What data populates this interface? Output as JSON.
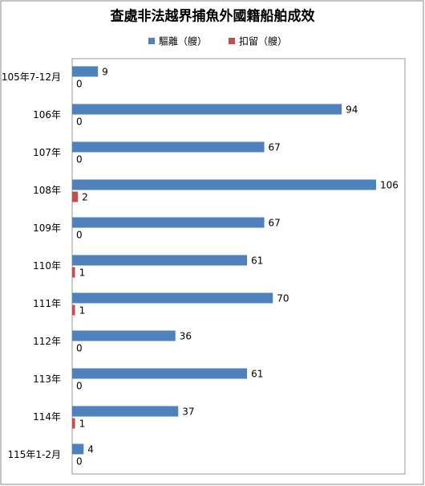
{
  "chart_data": {
    "type": "bar",
    "orientation": "horizontal",
    "title": "查處非法越界捕魚外國籍船舶成效",
    "categories": [
      "105年7-12月",
      "106年",
      "107年",
      "108年",
      "109年",
      "110年",
      "111年",
      "112年",
      "113年",
      "114年",
      "115年1-2月"
    ],
    "series": [
      {
        "name": "驅離（艘）",
        "color": "#4f81bd",
        "values": [
          9,
          94,
          67,
          106,
          67,
          61,
          70,
          36,
          61,
          37,
          4
        ]
      },
      {
        "name": "扣留（艘）",
        "color": "#c0504d",
        "values": [
          0,
          0,
          0,
          2,
          0,
          1,
          1,
          0,
          0,
          1,
          0
        ]
      }
    ],
    "xlim": [
      0,
      106
    ],
    "legend": "top"
  }
}
